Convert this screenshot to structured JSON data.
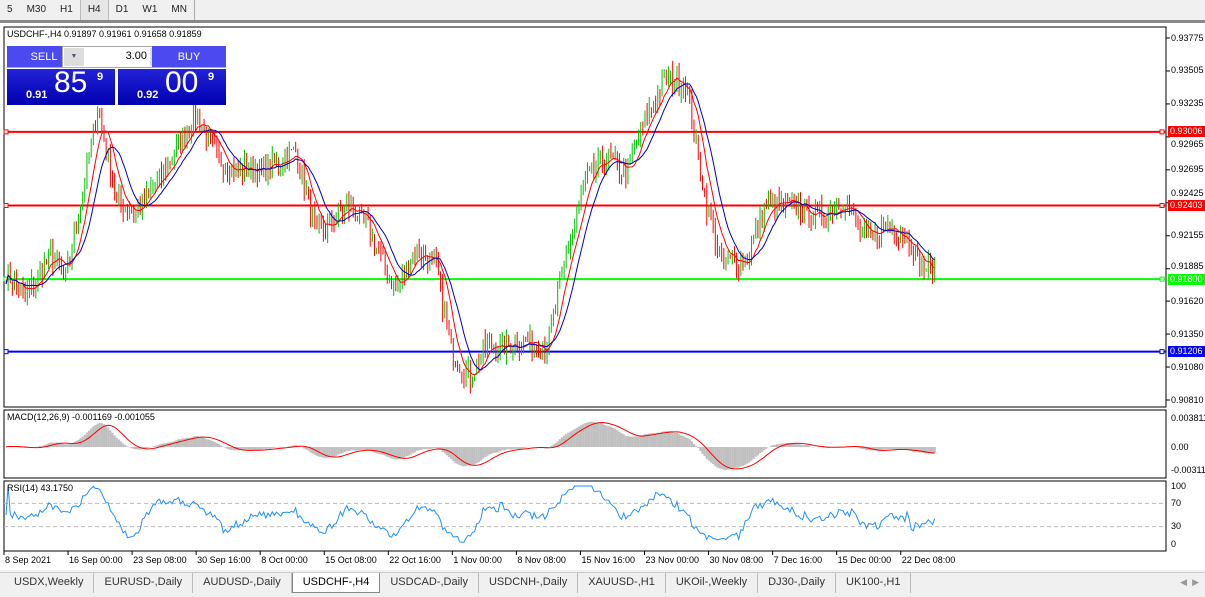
{
  "timeframes": [
    "5",
    "M30",
    "H1",
    "H4",
    "D1",
    "W1",
    "MN"
  ],
  "active_timeframe": "H4",
  "chart": {
    "header": "USDCHF-,H4  0.91897 0.91961 0.91658 0.91859",
    "trade_panel": {
      "sell_label": "SELL",
      "buy_label": "BUY",
      "lot": "3.00",
      "sell_small": "0.91",
      "sell_big": "85",
      "sell_tiny": "9",
      "buy_small": "0.92",
      "buy_big": "00",
      "buy_tiny": "9"
    },
    "price_axis": [
      "0.93775",
      "0.93505",
      "0.93235",
      "0.92965",
      "0.92695",
      "0.92425",
      "0.92155",
      "0.91885",
      "0.91620",
      "0.91350",
      "0.91080",
      "0.90810"
    ],
    "levels": [
      {
        "price": "0.93006",
        "color": "#ff0000"
      },
      {
        "price": "0.92403",
        "color": "#ff0000"
      },
      {
        "price": "0.91800",
        "color": "#00ff00"
      },
      {
        "price": "0.91206",
        "color": "#0000ff"
      }
    ],
    "macd": {
      "label": "MACD(12,26,9) -0.001169 -0.001055",
      "axis": [
        "0.003811",
        "0.00",
        "-0.00311"
      ]
    },
    "rsi": {
      "label": "RSI(14) 43.1750",
      "axis": [
        "100",
        "70",
        "30",
        "0"
      ]
    },
    "dates": [
      "8 Sep 2021",
      "16 Sep 00:00",
      "23 Sep 08:00",
      "30 Sep 16:00",
      "8 Oct 00:00",
      "15 Oct 08:00",
      "22 Oct 16:00",
      "1 Nov 00:00",
      "8 Nov 08:00",
      "15 Nov 16:00",
      "23 Nov 00:00",
      "30 Nov 08:00",
      "7 Dec 16:00",
      "15 Dec 00:00",
      "22 Dec 08:00"
    ],
    "colors": {
      "bull": "#00c000",
      "bear": "#ff0000",
      "fast_ma": "#ff0000",
      "slow_ma": "#0000c0",
      "macd_hist": "#c0c0c0",
      "rsi": "#1e90ff"
    }
  },
  "chart_data": {
    "type": "candlestick",
    "symbol": "USDCHF-",
    "timeframe": "H4",
    "ylim": [
      0.9081,
      0.93775
    ],
    "approx_close_path": [
      [
        0,
        0.9185
      ],
      [
        9,
        0.9165
      ],
      [
        21,
        0.92
      ],
      [
        28,
        0.918
      ],
      [
        38,
        0.927
      ],
      [
        43,
        0.932
      ],
      [
        52,
        0.9245
      ],
      [
        61,
        0.9235
      ],
      [
        75,
        0.927
      ],
      [
        89,
        0.9315
      ],
      [
        99,
        0.928
      ],
      [
        108,
        0.927
      ],
      [
        122,
        0.927
      ],
      [
        136,
        0.9285
      ],
      [
        146,
        0.9215
      ],
      [
        160,
        0.924
      ],
      [
        169,
        0.9225
      ],
      [
        183,
        0.917
      ],
      [
        192,
        0.9205
      ],
      [
        202,
        0.919
      ],
      [
        209,
        0.912
      ],
      [
        218,
        0.91
      ],
      [
        225,
        0.9125
      ],
      [
        235,
        0.9125
      ],
      [
        244,
        0.913
      ],
      [
        254,
        0.9125
      ],
      [
        263,
        0.92
      ],
      [
        272,
        0.926
      ],
      [
        282,
        0.928
      ],
      [
        291,
        0.9265
      ],
      [
        300,
        0.931
      ],
      [
        310,
        0.9345
      ],
      [
        319,
        0.934
      ],
      [
        329,
        0.924
      ],
      [
        336,
        0.9195
      ],
      [
        347,
        0.9195
      ],
      [
        357,
        0.924
      ],
      [
        371,
        0.924
      ],
      [
        380,
        0.923
      ],
      [
        394,
        0.9245
      ],
      [
        404,
        0.921
      ],
      [
        413,
        0.9225
      ],
      [
        423,
        0.9215
      ],
      [
        430,
        0.919
      ],
      [
        436,
        0.9186
      ]
    ]
  },
  "tabs": [
    "USDX,Weekly",
    "EURUSD-,Daily",
    "AUDUSD-,Daily",
    "USDCHF-,H4",
    "USDCAD-,Daily",
    "USDCNH-,Daily",
    "XAUUSD-,H1",
    "UKOil-,Weekly",
    "DJ30-,Daily",
    "UK100-,H1"
  ],
  "active_tab": "USDCHF-,H4"
}
